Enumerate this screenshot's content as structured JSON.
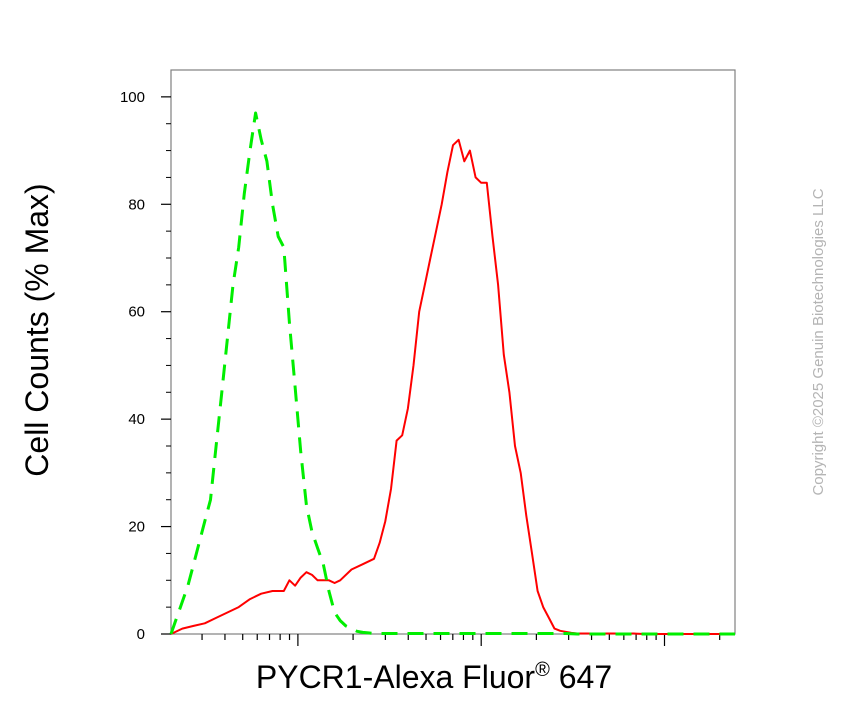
{
  "chart_data": {
    "type": "line",
    "xlabel": "PYCR1-Alexa Fluor® 647",
    "ylabel": "Cell Counts (% Max)",
    "xscale": "log",
    "ylim": [
      0,
      105
    ],
    "y_ticks": [
      0,
      20,
      40,
      60,
      80,
      100
    ],
    "y_tick_labels": [
      "0",
      "20",
      "40",
      "60",
      "80",
      "100"
    ],
    "grid": false,
    "legend": "none",
    "series": [
      {
        "color": "#ff0000",
        "style": "solid",
        "x": [
          0.0,
          0.02,
          0.04,
          0.06,
          0.08,
          0.1,
          0.12,
          0.14,
          0.16,
          0.18,
          0.2,
          0.21,
          0.22,
          0.23,
          0.24,
          0.25,
          0.26,
          0.27,
          0.28,
          0.29,
          0.3,
          0.32,
          0.34,
          0.36,
          0.37,
          0.38,
          0.39,
          0.4,
          0.41,
          0.42,
          0.43,
          0.44,
          0.45,
          0.46,
          0.47,
          0.48,
          0.49,
          0.5,
          0.51,
          0.52,
          0.53,
          0.54,
          0.55,
          0.56,
          0.57,
          0.58,
          0.59,
          0.6,
          0.61,
          0.62,
          0.63,
          0.64,
          0.65,
          0.66,
          0.67,
          0.68,
          0.69,
          0.7,
          0.71,
          0.72,
          0.73,
          0.74,
          0.75,
          0.76,
          0.77,
          0.78,
          0.8,
          0.82,
          0.84,
          0.88,
          0.92,
          0.96,
          1.0
        ],
        "y": [
          0,
          1,
          1.5,
          2,
          3,
          4,
          5,
          6.5,
          7.5,
          8,
          8,
          10,
          9,
          10.5,
          11.5,
          11,
          10,
          10,
          10,
          9.5,
          10,
          12,
          13,
          14,
          17,
          21,
          27,
          36,
          37,
          42,
          50,
          60,
          65,
          70,
          75,
          80,
          86,
          91,
          92,
          88,
          90,
          85,
          84,
          84,
          74,
          65,
          52,
          45,
          35,
          30,
          22,
          15,
          8,
          5,
          3,
          1,
          0.6,
          0.4,
          0.2,
          0.1,
          0.1,
          0.1,
          0.1,
          0.1,
          0.1,
          0.1,
          0.1,
          0.1,
          0,
          0,
          0,
          0,
          0
        ]
      },
      {
        "color": "#00ee00",
        "style": "dashed",
        "x": [
          0.0,
          0.01,
          0.02,
          0.03,
          0.04,
          0.05,
          0.06,
          0.07,
          0.08,
          0.09,
          0.1,
          0.11,
          0.12,
          0.13,
          0.14,
          0.15,
          0.16,
          0.17,
          0.18,
          0.19,
          0.2,
          0.21,
          0.22,
          0.23,
          0.24,
          0.25,
          0.26,
          0.27,
          0.28,
          0.29,
          0.3,
          0.31,
          0.32,
          0.33,
          0.34,
          0.35,
          0.36,
          0.37,
          0.38,
          0.39,
          0.4,
          0.41,
          0.42,
          0.43,
          0.44,
          0.45,
          0.46,
          0.47,
          0.48,
          0.49,
          0.5,
          0.52,
          0.54,
          0.56,
          0.58,
          0.6,
          0.62,
          0.64,
          0.66,
          0.68,
          0.7,
          0.72,
          0.76,
          0.8,
          0.84,
          0.88,
          0.92,
          0.96,
          1.0
        ],
        "y": [
          0,
          3,
          6,
          9,
          13,
          17,
          21,
          25,
          35,
          45,
          55,
          65,
          72,
          82,
          90,
          97,
          92,
          88,
          80,
          74,
          72,
          58,
          46,
          34,
          24,
          19,
          16,
          13,
          8,
          4,
          2.5,
          1.5,
          1,
          0.5,
          0.3,
          0.2,
          0.1,
          0.1,
          0.1,
          0.1,
          0.1,
          0.1,
          0.1,
          0.1,
          0.1,
          0.1,
          0.1,
          0.1,
          0.1,
          0.1,
          0.1,
          0.1,
          0.1,
          0.1,
          0.1,
          0.1,
          0.1,
          0.1,
          0.1,
          0.1,
          0.1,
          0,
          0,
          0,
          0,
          0,
          0,
          0,
          0
        ]
      }
    ]
  },
  "copyright": "Copyright ©2025 Genuin Biotechnologies LLC",
  "colors": {
    "axis": "#808080",
    "tick": "#000000",
    "copyright": "#b4b4b4"
  }
}
